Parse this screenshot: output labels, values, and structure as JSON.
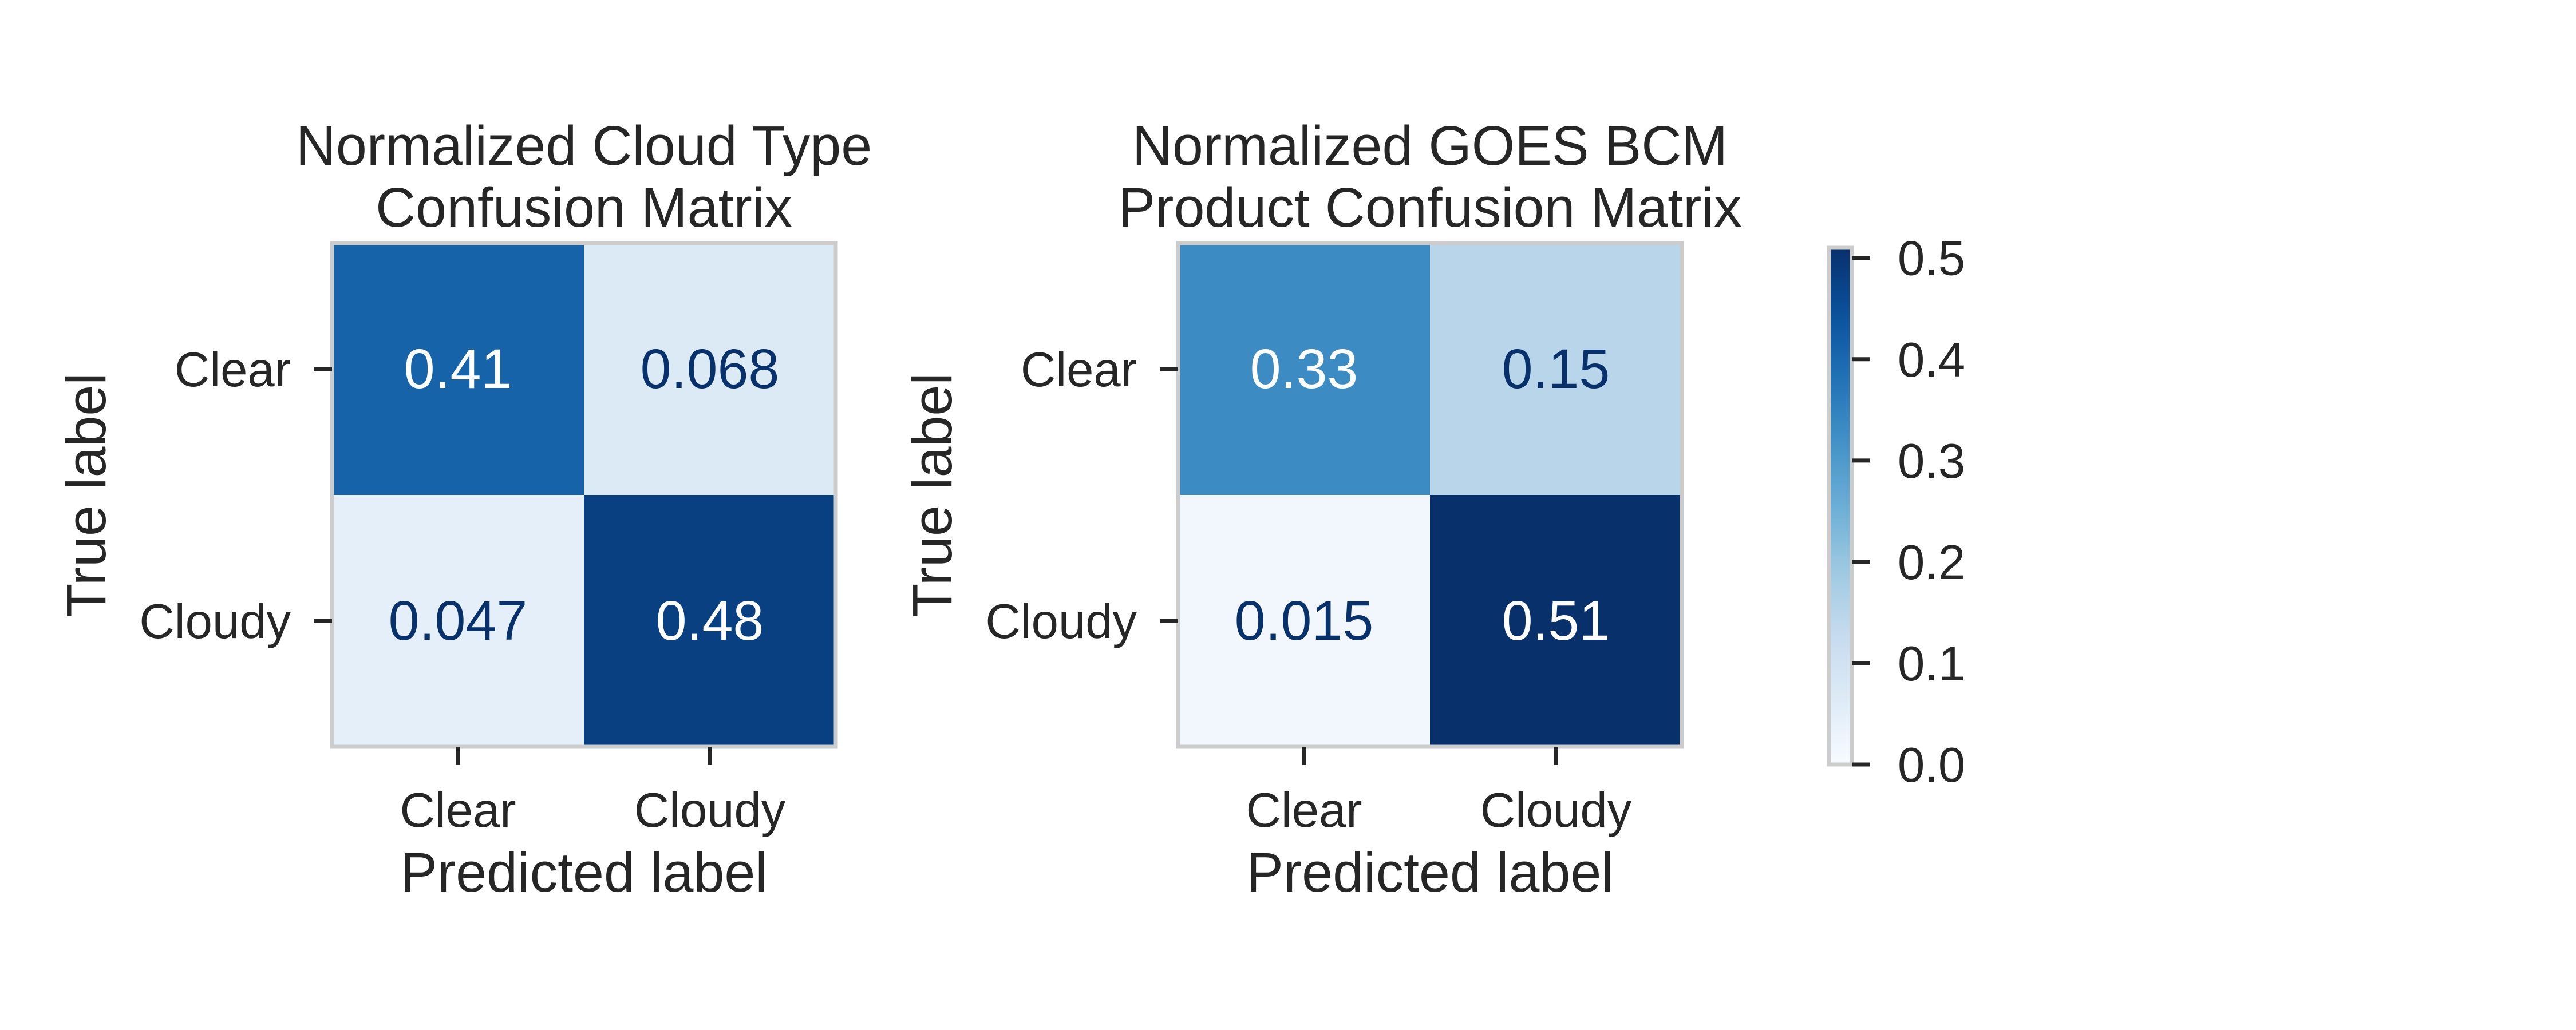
{
  "colors": {
    "cmap_low": "#f7fbff",
    "cmap_mid": "#6aaed6",
    "cmap_high": "#08306b",
    "text_dark": "#08306b",
    "text_light": "#ffffff",
    "frame": "#cccccc",
    "tick": "#262626"
  },
  "chart_data": [
    {
      "type": "heatmap",
      "title_lines": [
        "Normalized Cloud Type",
        "Confusion Matrix"
      ],
      "xlabel": "Predicted label",
      "ylabel": "True label",
      "x_categories": [
        "Clear",
        "Cloudy"
      ],
      "y_categories": [
        "Clear",
        "Cloudy"
      ],
      "values": [
        [
          0.41,
          0.068
        ],
        [
          0.047,
          0.48
        ]
      ],
      "value_labels": [
        [
          "0.41",
          "0.068"
        ],
        [
          "0.047",
          "0.48"
        ]
      ],
      "vmin": 0.0,
      "vmax": 0.51,
      "grid": false
    },
    {
      "type": "heatmap",
      "title_lines": [
        "Normalized GOES BCM",
        "Product Confusion Matrix"
      ],
      "xlabel": "Predicted label",
      "ylabel": "True label",
      "x_categories": [
        "Clear",
        "Cloudy"
      ],
      "y_categories": [
        "Clear",
        "Cloudy"
      ],
      "values": [
        [
          0.33,
          0.15
        ],
        [
          0.015,
          0.51
        ]
      ],
      "value_labels": [
        [
          "0.33",
          "0.15"
        ],
        [
          "0.015",
          "0.51"
        ]
      ],
      "vmin": 0.0,
      "vmax": 0.51,
      "grid": false
    }
  ],
  "colorbar": {
    "vmin": 0.0,
    "vmax": 0.51,
    "ticks": [
      0.0,
      0.1,
      0.2,
      0.3,
      0.4,
      0.5
    ],
    "tick_labels": [
      "0.0",
      "0.1",
      "0.2",
      "0.3",
      "0.4",
      "0.5"
    ],
    "placement": "right"
  }
}
